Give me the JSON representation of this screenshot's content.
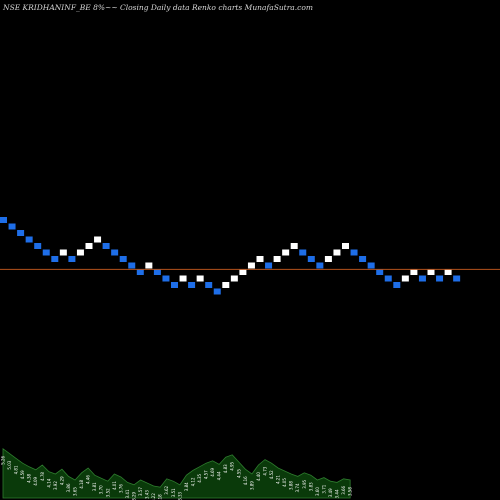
{
  "title": "NSE KRIDHANINF_BE 8%~~ Closing Daily data  Renko  charts MunafaSutra.com",
  "colors": {
    "background": "#000000",
    "up_brick": "#ffffff",
    "down_brick": "#1e6ee8",
    "reference_line": "#b4531c",
    "volume_fill": "#0a3a0a",
    "volume_stroke": "#2e7d2e",
    "volume_label": "#ffffff"
  },
  "chart_data": {
    "type": "renko",
    "bricks": [
      {
        "index": 0,
        "level": 0,
        "direction": "down"
      },
      {
        "index": 1,
        "level": 1,
        "direction": "down"
      },
      {
        "index": 2,
        "level": 2,
        "direction": "down"
      },
      {
        "index": 3,
        "level": 3,
        "direction": "down"
      },
      {
        "index": 4,
        "level": 4,
        "direction": "down"
      },
      {
        "index": 5,
        "level": 5,
        "direction": "down"
      },
      {
        "index": 6,
        "level": 6,
        "direction": "down"
      },
      {
        "index": 7,
        "level": 5,
        "direction": "up"
      },
      {
        "index": 8,
        "level": 6,
        "direction": "down"
      },
      {
        "index": 9,
        "level": 5,
        "direction": "up"
      },
      {
        "index": 10,
        "level": 4,
        "direction": "up"
      },
      {
        "index": 11,
        "level": 3,
        "direction": "up"
      },
      {
        "index": 12,
        "level": 4,
        "direction": "down"
      },
      {
        "index": 13,
        "level": 5,
        "direction": "down"
      },
      {
        "index": 14,
        "level": 6,
        "direction": "down"
      },
      {
        "index": 15,
        "level": 7,
        "direction": "down"
      },
      {
        "index": 16,
        "level": 8,
        "direction": "down"
      },
      {
        "index": 17,
        "level": 7,
        "direction": "up"
      },
      {
        "index": 18,
        "level": 8,
        "direction": "down"
      },
      {
        "index": 19,
        "level": 9,
        "direction": "down"
      },
      {
        "index": 20,
        "level": 10,
        "direction": "down"
      },
      {
        "index": 21,
        "level": 9,
        "direction": "up"
      },
      {
        "index": 22,
        "level": 10,
        "direction": "down"
      },
      {
        "index": 23,
        "level": 9,
        "direction": "up"
      },
      {
        "index": 24,
        "level": 10,
        "direction": "down"
      },
      {
        "index": 25,
        "level": 11,
        "direction": "down"
      },
      {
        "index": 26,
        "level": 10,
        "direction": "up"
      },
      {
        "index": 27,
        "level": 9,
        "direction": "up"
      },
      {
        "index": 28,
        "level": 8,
        "direction": "up"
      },
      {
        "index": 29,
        "level": 7,
        "direction": "up"
      },
      {
        "index": 30,
        "level": 6,
        "direction": "up"
      },
      {
        "index": 31,
        "level": 7,
        "direction": "down"
      },
      {
        "index": 32,
        "level": 6,
        "direction": "up"
      },
      {
        "index": 33,
        "level": 5,
        "direction": "up"
      },
      {
        "index": 34,
        "level": 4,
        "direction": "up"
      },
      {
        "index": 35,
        "level": 5,
        "direction": "down"
      },
      {
        "index": 36,
        "level": 6,
        "direction": "down"
      },
      {
        "index": 37,
        "level": 7,
        "direction": "down"
      },
      {
        "index": 38,
        "level": 6,
        "direction": "up"
      },
      {
        "index": 39,
        "level": 5,
        "direction": "up"
      },
      {
        "index": 40,
        "level": 4,
        "direction": "up"
      },
      {
        "index": 41,
        "level": 5,
        "direction": "down"
      },
      {
        "index": 42,
        "level": 6,
        "direction": "down"
      },
      {
        "index": 43,
        "level": 7,
        "direction": "down"
      },
      {
        "index": 44,
        "level": 8,
        "direction": "down"
      },
      {
        "index": 45,
        "level": 9,
        "direction": "down"
      },
      {
        "index": 46,
        "level": 10,
        "direction": "down"
      },
      {
        "index": 47,
        "level": 9,
        "direction": "up"
      },
      {
        "index": 48,
        "level": 8,
        "direction": "up"
      },
      {
        "index": 49,
        "level": 9,
        "direction": "down"
      },
      {
        "index": 50,
        "level": 8,
        "direction": "up"
      },
      {
        "index": 51,
        "level": 9,
        "direction": "down"
      },
      {
        "index": 52,
        "level": 8,
        "direction": "up"
      },
      {
        "index": 53,
        "level": 9,
        "direction": "down"
      }
    ],
    "reference_line_level": 7.6,
    "volume": {
      "values": [
        0.82,
        0.74,
        0.66,
        0.58,
        0.52,
        0.47,
        0.55,
        0.44,
        0.4,
        0.48,
        0.36,
        0.3,
        0.42,
        0.5,
        0.38,
        0.33,
        0.28,
        0.4,
        0.35,
        0.26,
        0.22,
        0.3,
        0.25,
        0.2,
        0.18,
        0.32,
        0.28,
        0.22,
        0.38,
        0.46,
        0.52,
        0.58,
        0.62,
        0.56,
        0.68,
        0.72,
        0.6,
        0.48,
        0.4,
        0.55,
        0.64,
        0.58,
        0.5,
        0.45,
        0.4,
        0.36,
        0.42,
        0.38,
        0.3,
        0.34,
        0.28,
        0.26,
        0.32,
        0.3
      ],
      "labels": [
        "5.26",
        "5.03",
        "4.81",
        "4.59",
        "4.38",
        "4.09",
        "4.78",
        "4.14",
        "3.92",
        "4.29",
        "3.86",
        "3.65",
        "4.18",
        "4.46",
        "3.81",
        "3.70",
        "3.52",
        "4.01",
        "3.76",
        "3.41",
        "3.29",
        "3.57",
        "3.43",
        "3.22",
        "3.18",
        "3.62",
        "3.51",
        "3.33",
        "3.84",
        "4.12",
        "4.35",
        "4.57",
        "4.69",
        "4.44",
        "4.83",
        "4.95",
        "4.55",
        "4.16",
        "3.89",
        "4.40",
        "4.73",
        "4.52",
        "4.21",
        "4.05",
        "3.88",
        "3.74",
        "3.95",
        "3.83",
        "3.60",
        "3.71",
        "3.49",
        "3.44",
        "3.66",
        "3.58"
      ]
    }
  }
}
